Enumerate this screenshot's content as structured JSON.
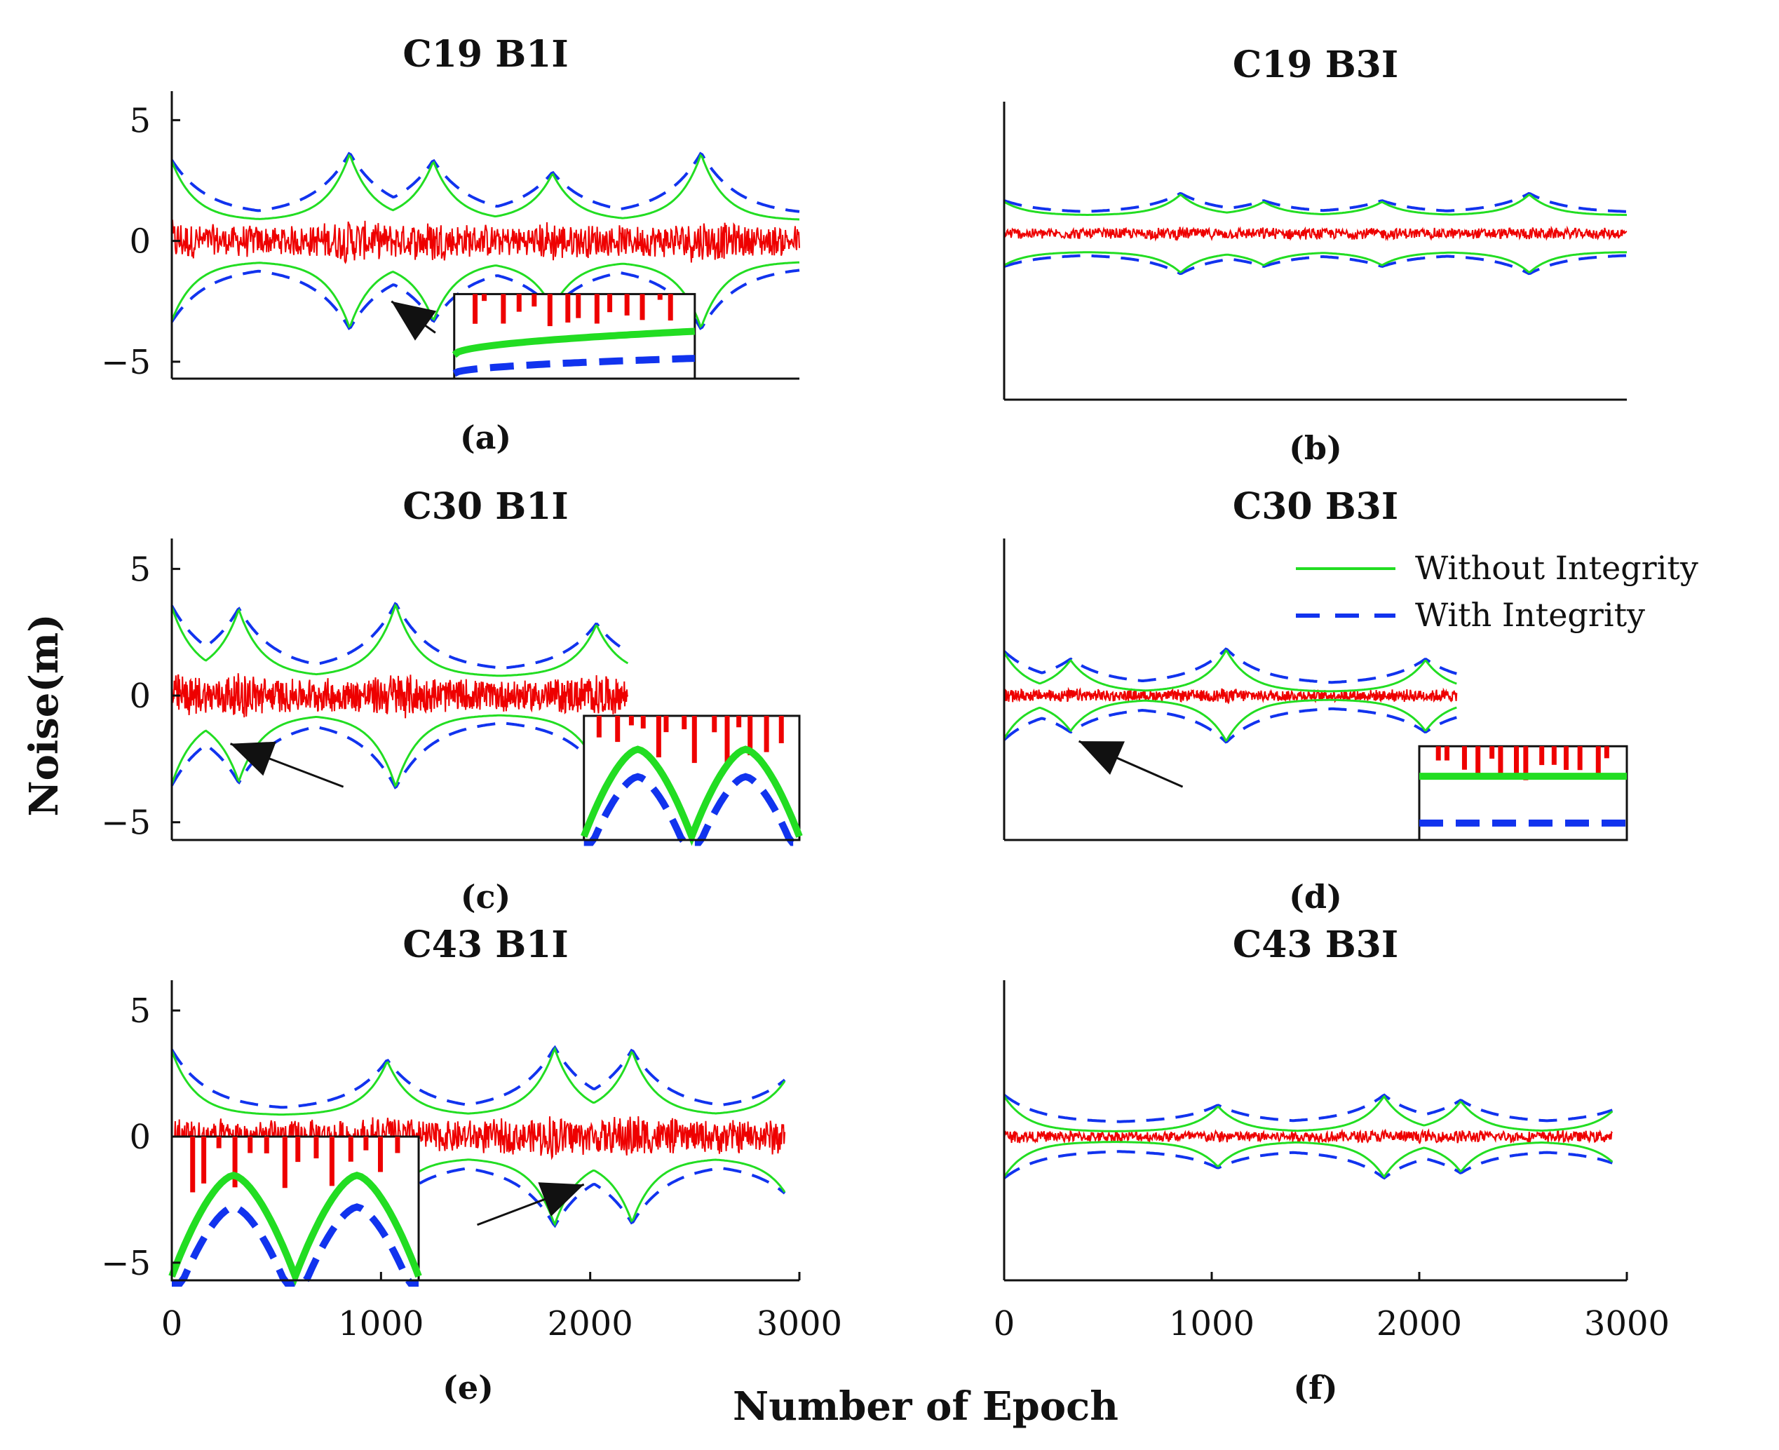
{
  "figure": {
    "ylabel": "Noise(m)",
    "xlabel": "Number of Epoch",
    "legend": {
      "placement": "top-right of panel (d)",
      "entries": [
        {
          "name": "Without Integrity",
          "color": "#22dd22",
          "style": "solid"
        },
        {
          "name": "With Integrity",
          "color": "#1133ee",
          "style": "dashed"
        }
      ]
    },
    "noise_color": "#ee0000"
  },
  "chart_data": [
    {
      "id": "a",
      "type": "line",
      "title": "C19 B1I",
      "caption": "(a)",
      "xlim": [
        0,
        3000
      ],
      "ylim": [
        -5.7,
        6.2
      ],
      "yticks": [
        -5,
        0,
        5
      ],
      "xticks": [],
      "x_end": 3000,
      "base_green": 0.85,
      "base_blue": 1.05,
      "peaks": [
        {
          "x": 0,
          "h": 3.3
        },
        {
          "x": 850,
          "h": 3.6
        },
        {
          "x": 1250,
          "h": 3.3
        },
        {
          "x": 1820,
          "h": 2.8
        },
        {
          "x": 2530,
          "h": 3.6
        }
      ],
      "noise_amp": 1.0,
      "inset": {
        "x0": 1350,
        "x1": 2500,
        "y0": -5.7,
        "y1": -2.2
      },
      "arrows": [
        {
          "from": [
            1260,
            -3.8
          ],
          "to": [
            1050,
            -2.5
          ]
        }
      ]
    },
    {
      "id": "b",
      "type": "line",
      "title": "C19 B3I",
      "caption": "(b)",
      "xlim": [
        0,
        3000
      ],
      "ylim": [
        -7.2,
        5.0
      ],
      "yticks": [],
      "xticks": [],
      "x_end": 3000,
      "base_green": 0.75,
      "base_blue": 0.85,
      "peaks": [
        {
          "x": 0,
          "h": 1.3
        },
        {
          "x": 850,
          "h": 1.6
        },
        {
          "x": 1250,
          "h": 1.3
        },
        {
          "x": 1820,
          "h": 1.3
        },
        {
          "x": 2530,
          "h": 1.6
        }
      ],
      "offset": -0.4,
      "noise_amp": 0.35
    },
    {
      "id": "c",
      "type": "line",
      "title": "C30 B1I",
      "caption": "(c)",
      "xlim": [
        0,
        3000
      ],
      "ylim": [
        -5.7,
        6.2
      ],
      "yticks": [
        -5,
        0,
        5
      ],
      "xticks": [],
      "x_end": 2180,
      "base_green": 0.75,
      "base_blue": 0.95,
      "peaks": [
        {
          "x": 0,
          "h": 3.5
        },
        {
          "x": 320,
          "h": 3.4
        },
        {
          "x": 1070,
          "h": 3.6
        },
        {
          "x": 2030,
          "h": 2.8
        }
      ],
      "noise_amp": 1.0,
      "inset": {
        "x0": 1970,
        "x1": 3000,
        "y0": -5.7,
        "y1": -0.8
      },
      "arrows": [
        {
          "from": [
            820,
            -3.6
          ],
          "to": [
            280,
            -1.9
          ]
        }
      ]
    },
    {
      "id": "d",
      "type": "line",
      "title": "C30 B3I",
      "caption": "(d)",
      "xlim": [
        0,
        3000
      ],
      "ylim": [
        -5.7,
        6.2
      ],
      "yticks": [],
      "xticks": [],
      "x_end": 2180,
      "base_green": 0.15,
      "base_blue": 0.45,
      "peaks": [
        {
          "x": 0,
          "h": 1.7
        },
        {
          "x": 320,
          "h": 1.4
        },
        {
          "x": 1070,
          "h": 1.8
        },
        {
          "x": 2030,
          "h": 1.4
        }
      ],
      "noise_amp": 0.35,
      "inset": {
        "x0": 2000,
        "x1": 3000,
        "y0": -5.7,
        "y1": -2.0
      },
      "arrows": [
        {
          "from": [
            860,
            -3.6
          ],
          "to": [
            360,
            -1.8
          ]
        }
      ]
    },
    {
      "id": "e",
      "type": "line",
      "title": "C43 B1I",
      "caption": "(e)",
      "xlim": [
        0,
        3000
      ],
      "ylim": [
        -5.7,
        6.2
      ],
      "yticks": [
        -5,
        0,
        5
      ],
      "xticks": [
        0,
        1000,
        2000,
        3000
      ],
      "x_end": 2930,
      "base_green": 0.85,
      "base_blue": 1.05,
      "peaks": [
        {
          "x": 0,
          "h": 3.4
        },
        {
          "x": 1030,
          "h": 3.0
        },
        {
          "x": 1830,
          "h": 3.5
        },
        {
          "x": 2200,
          "h": 3.4
        },
        {
          "x": 2930,
          "h": 2.2
        }
      ],
      "noise_amp": 1.0,
      "inset": {
        "x0": 0,
        "x1": 1180,
        "y0": -5.7,
        "y1": 0.0
      },
      "arrows": [
        {
          "from": [
            1460,
            -3.5
          ],
          "to": [
            1970,
            -1.9
          ]
        }
      ]
    },
    {
      "id": "f",
      "type": "line",
      "title": "C43 B3I",
      "caption": "(f)",
      "xlim": [
        0,
        3000
      ],
      "ylim": [
        -5.7,
        6.2
      ],
      "yticks": [],
      "xticks": [
        0,
        1000,
        2000,
        3000
      ],
      "x_end": 2930,
      "base_green": 0.2,
      "base_blue": 0.55,
      "peaks": [
        {
          "x": 0,
          "h": 1.6
        },
        {
          "x": 1030,
          "h": 1.2
        },
        {
          "x": 1830,
          "h": 1.6
        },
        {
          "x": 2200,
          "h": 1.4
        },
        {
          "x": 2930,
          "h": 1.0
        }
      ],
      "noise_amp": 0.35
    }
  ]
}
